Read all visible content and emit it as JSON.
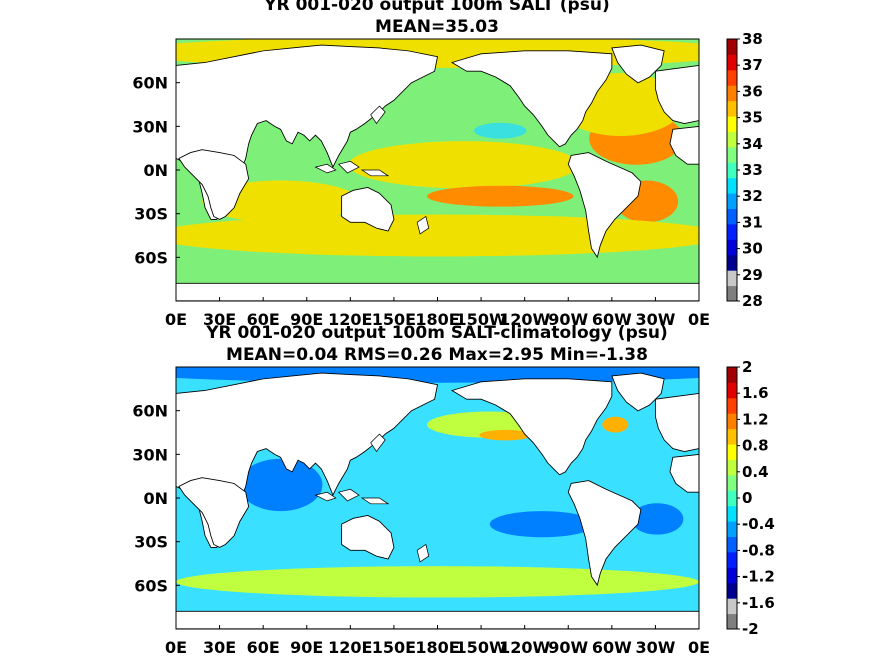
{
  "panels": [
    {
      "title_line1": "YR 001-020 output 100m SALT (psu)",
      "title_line2": "MEAN=35.03",
      "lon_ticks": [
        "0E",
        "30E",
        "60E",
        "90E",
        "120E",
        "150E",
        "180E",
        "150W",
        "120W",
        "90W",
        "60W",
        "30W",
        "0E"
      ],
      "lat_ticks": [
        "60N",
        "30N",
        "0N",
        "30S",
        "60S"
      ],
      "colorbar": {
        "ticks": [
          "38",
          "37",
          "36",
          "35",
          "34",
          "33",
          "32",
          "31",
          "30",
          "29",
          "28"
        ],
        "range": [
          28,
          38
        ],
        "colors": [
          "#7f7f7f",
          "#c8c8c8",
          "#00008f",
          "#0000d8",
          "#0020ff",
          "#0060ff",
          "#00a0ff",
          "#00e0ff",
          "#40ffbf",
          "#80ff80",
          "#bfff40",
          "#ffff00",
          "#ffc000",
          "#ff8000",
          "#ff4000",
          "#e00000",
          "#a00000"
        ]
      },
      "field_colors": {
        "ocean": "#7ef07a",
        "warm": "#f0e000",
        "hot": "#ff8c00",
        "cool": "#3adfe0",
        "land": "#ffffff"
      }
    },
    {
      "title_line1": "YR 001-020 output 100m SALT-climatology (psu)",
      "title_line2": "MEAN=0.04   RMS=0.26   Max=2.95   Min=-1.38",
      "lon_ticks": [
        "0E",
        "30E",
        "60E",
        "90E",
        "120E",
        "150E",
        "180E",
        "150W",
        "120W",
        "90W",
        "60W",
        "30W",
        "0E"
      ],
      "lat_ticks": [
        "60N",
        "30N",
        "0N",
        "30S",
        "60S"
      ],
      "colorbar": {
        "ticks": [
          "2",
          "1.6",
          "1.2",
          "0.8",
          "0.4",
          "0",
          "-0.4",
          "-0.8",
          "-1.2",
          "-1.6",
          "-2"
        ],
        "range": [
          -2,
          2
        ],
        "colors": [
          "#7f7f7f",
          "#c8c8c8",
          "#00008f",
          "#0000d8",
          "#0020ff",
          "#0060ff",
          "#00a0ff",
          "#00e0ff",
          "#40ffbf",
          "#80ff80",
          "#bfff40",
          "#ffff00",
          "#ffc000",
          "#ff8000",
          "#ff4000",
          "#e00000",
          "#a00000"
        ]
      },
      "field_colors": {
        "ocean": "#3ae0ff",
        "warm": "#c0ff40",
        "hot": "#ffb000",
        "cool": "#0080ff",
        "land": "#ffffff"
      }
    }
  ]
}
